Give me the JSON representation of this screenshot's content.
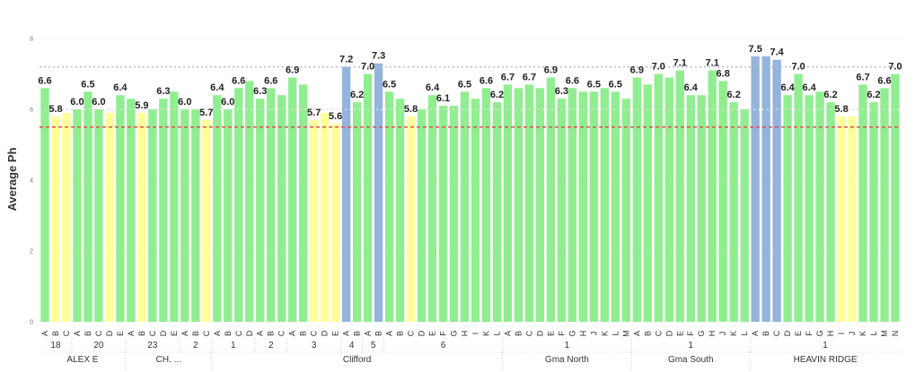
{
  "chart_data": {
    "type": "bar",
    "title": "",
    "xlabel": "",
    "ylabel": "Average Ph",
    "ylim": [
      0,
      8
    ],
    "yticks": [
      0,
      2,
      4,
      6,
      8
    ],
    "reference_lines": [
      {
        "value": 7.2,
        "color": "#bbbbbb",
        "style": "dotted"
      },
      {
        "value": 6.0,
        "color": "#dddddd",
        "style": "dotted"
      },
      {
        "value": 5.5,
        "color": "#e05050",
        "style": "dashed"
      }
    ],
    "colors": {
      "normal": "#90ee90",
      "low": "#ffff99",
      "high": "#94b4dc"
    },
    "sites": [
      {
        "name": "ALEX E",
        "groups": [
          {
            "name": "18",
            "bars": [
              {
                "cat": "A",
                "value": 6.6,
                "status": "normal",
                "label": "6.6"
              },
              {
                "cat": "B",
                "value": 5.8,
                "status": "low",
                "label": "5.8"
              },
              {
                "cat": "C",
                "value": 5.9,
                "status": "low",
                "label": ""
              }
            ]
          },
          {
            "name": "20",
            "bars": [
              {
                "cat": "A",
                "value": 6.0,
                "status": "normal",
                "label": "6.0"
              },
              {
                "cat": "B",
                "value": 6.5,
                "status": "normal",
                "label": "6.5"
              },
              {
                "cat": "C",
                "value": 6.0,
                "status": "normal",
                "label": "6.0"
              },
              {
                "cat": "D",
                "value": 5.9,
                "status": "low",
                "label": ""
              },
              {
                "cat": "E",
                "value": 6.4,
                "status": "normal",
                "label": "6.4"
              }
            ]
          }
        ]
      },
      {
        "name": "CH. ...",
        "groups": [
          {
            "name": "23",
            "bars": [
              {
                "cat": "A",
                "value": 6.3,
                "status": "normal",
                "label": ""
              },
              {
                "cat": "B",
                "value": 5.9,
                "status": "low",
                "label": "5.9"
              },
              {
                "cat": "C",
                "value": 6.0,
                "status": "normal",
                "label": ""
              },
              {
                "cat": "D",
                "value": 6.3,
                "status": "normal",
                "label": "6.3"
              },
              {
                "cat": "E",
                "value": 6.5,
                "status": "normal",
                "label": ""
              }
            ]
          },
          {
            "name": "2",
            "bars": [
              {
                "cat": "A",
                "value": 6.0,
                "status": "normal",
                "label": "6.0"
              },
              {
                "cat": "B",
                "value": 6.0,
                "status": "normal",
                "label": ""
              },
              {
                "cat": "C",
                "value": 5.7,
                "status": "low",
                "label": "5.7"
              }
            ]
          }
        ]
      },
      {
        "name": "Clifford",
        "groups": [
          {
            "name": "1",
            "bars": [
              {
                "cat": "A",
                "value": 6.4,
                "status": "normal",
                "label": "6.4"
              },
              {
                "cat": "B",
                "value": 6.0,
                "status": "normal",
                "label": "6.0"
              },
              {
                "cat": "C",
                "value": 6.6,
                "status": "normal",
                "label": "6.6"
              },
              {
                "cat": "D",
                "value": 6.8,
                "status": "normal",
                "label": ""
              }
            ]
          },
          {
            "name": "2",
            "bars": [
              {
                "cat": "A",
                "value": 6.3,
                "status": "normal",
                "label": "6.3"
              },
              {
                "cat": "B",
                "value": 6.6,
                "status": "normal",
                "label": "6.6"
              },
              {
                "cat": "C",
                "value": 6.4,
                "status": "normal",
                "label": ""
              }
            ]
          },
          {
            "name": "3",
            "bars": [
              {
                "cat": "A",
                "value": 6.9,
                "status": "normal",
                "label": "6.9"
              },
              {
                "cat": "B",
                "value": 6.7,
                "status": "normal",
                "label": ""
              },
              {
                "cat": "C",
                "value": 5.7,
                "status": "low",
                "label": "5.7"
              },
              {
                "cat": "D",
                "value": 5.9,
                "status": "low",
                "label": ""
              },
              {
                "cat": "E",
                "value": 5.6,
                "status": "low",
                "label": "5.6"
              }
            ]
          },
          {
            "name": "4",
            "bars": [
              {
                "cat": "A",
                "value": 7.2,
                "status": "high",
                "label": "7.2"
              },
              {
                "cat": "B",
                "value": 6.2,
                "status": "normal",
                "label": "6.2"
              }
            ]
          },
          {
            "name": "5",
            "bars": [
              {
                "cat": "A",
                "value": 7.0,
                "status": "normal",
                "label": "7.0"
              },
              {
                "cat": "B",
                "value": 7.3,
                "status": "high",
                "label": "7.3"
              }
            ]
          },
          {
            "name": "6",
            "bars": [
              {
                "cat": "A",
                "value": 6.5,
                "status": "normal",
                "label": "6.5"
              },
              {
                "cat": "B",
                "value": 6.3,
                "status": "normal",
                "label": ""
              },
              {
                "cat": "C",
                "value": 5.8,
                "status": "low",
                "label": "5.8"
              },
              {
                "cat": "D",
                "value": 6.0,
                "status": "normal",
                "label": ""
              },
              {
                "cat": "E",
                "value": 6.4,
                "status": "normal",
                "label": "6.4"
              },
              {
                "cat": "F",
                "value": 6.1,
                "status": "normal",
                "label": "6.1"
              },
              {
                "cat": "G",
                "value": 6.1,
                "status": "normal",
                "label": ""
              },
              {
                "cat": "H",
                "value": 6.5,
                "status": "normal",
                "label": "6.5"
              },
              {
                "cat": "I",
                "value": 6.3,
                "status": "normal",
                "label": ""
              },
              {
                "cat": "K",
                "value": 6.6,
                "status": "normal",
                "label": "6.6"
              },
              {
                "cat": "L",
                "value": 6.2,
                "status": "normal",
                "label": "6.2"
              }
            ]
          }
        ]
      },
      {
        "name": "Gma North",
        "groups": [
          {
            "name": "1",
            "bars": [
              {
                "cat": "A",
                "value": 6.7,
                "status": "normal",
                "label": "6.7"
              },
              {
                "cat": "B",
                "value": 6.6,
                "status": "normal",
                "label": ""
              },
              {
                "cat": "C",
                "value": 6.7,
                "status": "normal",
                "label": "6.7"
              },
              {
                "cat": "D",
                "value": 6.6,
                "status": "normal",
                "label": ""
              },
              {
                "cat": "E",
                "value": 6.9,
                "status": "normal",
                "label": "6.9"
              },
              {
                "cat": "F",
                "value": 6.3,
                "status": "normal",
                "label": "6.3"
              },
              {
                "cat": "G",
                "value": 6.6,
                "status": "normal",
                "label": "6.6"
              },
              {
                "cat": "H",
                "value": 6.5,
                "status": "normal",
                "label": ""
              },
              {
                "cat": "J",
                "value": 6.5,
                "status": "normal",
                "label": "6.5"
              },
              {
                "cat": "K",
                "value": 6.6,
                "status": "normal",
                "label": ""
              },
              {
                "cat": "L",
                "value": 6.5,
                "status": "normal",
                "label": "6.5"
              },
              {
                "cat": "M",
                "value": 6.3,
                "status": "normal",
                "label": ""
              }
            ]
          }
        ]
      },
      {
        "name": "Gma South",
        "groups": [
          {
            "name": "1",
            "bars": [
              {
                "cat": "A",
                "value": 6.9,
                "status": "normal",
                "label": "6.9"
              },
              {
                "cat": "B",
                "value": 6.7,
                "status": "normal",
                "label": ""
              },
              {
                "cat": "C",
                "value": 7.0,
                "status": "normal",
                "label": "7.0"
              },
              {
                "cat": "D",
                "value": 6.9,
                "status": "normal",
                "label": ""
              },
              {
                "cat": "E",
                "value": 7.1,
                "status": "normal",
                "label": "7.1"
              },
              {
                "cat": "F",
                "value": 6.4,
                "status": "normal",
                "label": "6.4"
              },
              {
                "cat": "G",
                "value": 6.4,
                "status": "normal",
                "label": ""
              },
              {
                "cat": "H",
                "value": 7.1,
                "status": "normal",
                "label": "7.1"
              },
              {
                "cat": "J",
                "value": 6.8,
                "status": "normal",
                "label": "6.8"
              },
              {
                "cat": "K",
                "value": 6.2,
                "status": "normal",
                "label": "6.2"
              },
              {
                "cat": "L",
                "value": 6.0,
                "status": "normal",
                "label": ""
              }
            ]
          }
        ]
      },
      {
        "name": "HEAVIN RIDGE",
        "groups": [
          {
            "name": "1",
            "bars": [
              {
                "cat": "A",
                "value": 7.5,
                "status": "high",
                "label": "7.5"
              },
              {
                "cat": "B",
                "value": 7.5,
                "status": "high",
                "label": ""
              },
              {
                "cat": "C",
                "value": 7.4,
                "status": "high",
                "label": "7.4"
              },
              {
                "cat": "D",
                "value": 6.4,
                "status": "normal",
                "label": "6.4"
              },
              {
                "cat": "E",
                "value": 7.0,
                "status": "normal",
                "label": "7.0"
              },
              {
                "cat": "F",
                "value": 6.4,
                "status": "normal",
                "label": "6.4"
              },
              {
                "cat": "G",
                "value": 6.5,
                "status": "normal",
                "label": ""
              },
              {
                "cat": "H",
                "value": 6.2,
                "status": "normal",
                "label": "6.2"
              },
              {
                "cat": "I",
                "value": 5.8,
                "status": "low",
                "label": "5.8"
              },
              {
                "cat": "J",
                "value": 5.8,
                "status": "low",
                "label": ""
              },
              {
                "cat": "K",
                "value": 6.7,
                "status": "normal",
                "label": "6.7"
              },
              {
                "cat": "L",
                "value": 6.2,
                "status": "normal",
                "label": "6.2"
              },
              {
                "cat": "M",
                "value": 6.6,
                "status": "normal",
                "label": "6.6"
              },
              {
                "cat": "N",
                "value": 7.0,
                "status": "normal",
                "label": "7.0"
              }
            ]
          }
        ]
      }
    ]
  }
}
